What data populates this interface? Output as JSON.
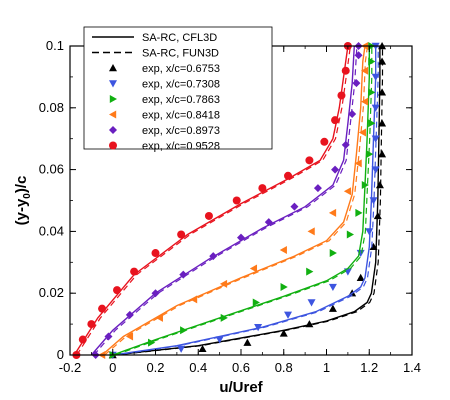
{
  "chart_data": {
    "type": "line",
    "xlabel": "u/Uref",
    "ylabel_parts": [
      "(y-y",
      "0",
      ")/c"
    ],
    "xlim": [
      -0.2,
      1.4
    ],
    "ylim": [
      0,
      0.1
    ],
    "xticks": [
      "-0.2",
      "0",
      "0.2",
      "0.4",
      "0.6",
      "0.8",
      "1",
      "1.2",
      "1.4"
    ],
    "yticks": [
      "0",
      "0.02",
      "0.04",
      "0.06",
      "0.08",
      "0.1"
    ],
    "xtick_values": [
      -0.2,
      0,
      0.2,
      0.4,
      0.6,
      0.8,
      1.0,
      1.2,
      1.4
    ],
    "ytick_values": [
      0,
      0.02,
      0.04,
      0.06,
      0.08,
      0.1
    ],
    "grid": false,
    "legend_position": "top-left",
    "legend": {
      "cfl3d": "SA-RC, CFL3D",
      "fun3d": "SA-RC, FUN3D"
    },
    "series": [
      {
        "name": "exp, x/c=0.6753",
        "color": "#000000",
        "marker": "triangle-up",
        "line": [
          [
            0.0,
            0.0
          ],
          [
            0.4,
            0.003
          ],
          [
            0.8,
            0.008
          ],
          [
            1.0,
            0.011
          ],
          [
            1.13,
            0.014
          ],
          [
            1.19,
            0.017
          ],
          [
            1.21,
            0.02
          ],
          [
            1.23,
            0.03
          ],
          [
            1.24,
            0.05
          ],
          [
            1.245,
            0.07
          ],
          [
            1.25,
            0.09
          ],
          [
            1.25,
            0.1
          ]
        ],
        "points": [
          [
            0.0,
            0.0
          ],
          [
            0.42,
            0.002
          ],
          [
            0.63,
            0.004
          ],
          [
            0.8,
            0.007
          ],
          [
            0.92,
            0.01
          ],
          [
            1.03,
            0.015
          ],
          [
            1.12,
            0.02
          ],
          [
            1.16,
            0.025
          ],
          [
            1.22,
            0.035
          ],
          [
            1.24,
            0.045
          ],
          [
            1.25,
            0.055
          ],
          [
            1.26,
            0.065
          ],
          [
            1.26,
            0.075
          ],
          [
            1.26,
            0.085
          ],
          [
            1.26,
            0.095
          ],
          [
            1.26,
            0.1
          ]
        ]
      },
      {
        "name": "exp, x/c=0.7308",
        "color": "#3d55e0",
        "marker": "triangle-down",
        "line": [
          [
            0.0,
            0.0
          ],
          [
            0.3,
            0.003
          ],
          [
            0.7,
            0.009
          ],
          [
            0.95,
            0.014
          ],
          [
            1.1,
            0.019
          ],
          [
            1.16,
            0.022
          ],
          [
            1.18,
            0.025
          ],
          [
            1.2,
            0.035
          ],
          [
            1.21,
            0.05
          ],
          [
            1.22,
            0.07
          ],
          [
            1.23,
            0.09
          ],
          [
            1.23,
            0.1
          ]
        ],
        "points": [
          [
            0.0,
            0.0
          ],
          [
            0.32,
            0.002
          ],
          [
            0.5,
            0.005
          ],
          [
            0.68,
            0.009
          ],
          [
            0.82,
            0.013
          ],
          [
            0.93,
            0.017
          ],
          [
            1.03,
            0.022
          ],
          [
            1.1,
            0.027
          ],
          [
            1.16,
            0.033
          ],
          [
            1.2,
            0.04
          ],
          [
            1.22,
            0.05
          ],
          [
            1.23,
            0.06
          ],
          [
            1.23,
            0.07
          ],
          [
            1.23,
            0.08
          ],
          [
            1.23,
            0.09
          ],
          [
            1.23,
            0.1
          ]
        ]
      },
      {
        "name": "exp, x/c=0.7863",
        "color": "#11b011",
        "marker": "triangle-right",
        "line": [
          [
            0.0,
            0.0
          ],
          [
            0.2,
            0.005
          ],
          [
            0.5,
            0.012
          ],
          [
            0.8,
            0.019
          ],
          [
            1.0,
            0.024
          ],
          [
            1.1,
            0.028
          ],
          [
            1.15,
            0.032
          ],
          [
            1.17,
            0.04
          ],
          [
            1.18,
            0.055
          ],
          [
            1.19,
            0.07
          ],
          [
            1.2,
            0.09
          ],
          [
            1.2,
            0.1
          ]
        ],
        "points": [
          [
            0.0,
            0.0
          ],
          [
            0.18,
            0.004
          ],
          [
            0.33,
            0.008
          ],
          [
            0.52,
            0.012
          ],
          [
            0.67,
            0.017
          ],
          [
            0.8,
            0.022
          ],
          [
            0.92,
            0.027
          ],
          [
            1.03,
            0.033
          ],
          [
            1.11,
            0.039
          ],
          [
            1.15,
            0.046
          ],
          [
            1.18,
            0.055
          ],
          [
            1.2,
            0.065
          ],
          [
            1.21,
            0.075
          ],
          [
            1.21,
            0.085
          ],
          [
            1.21,
            0.095
          ],
          [
            1.21,
            0.1
          ]
        ]
      },
      {
        "name": "exp, x/c=0.8418",
        "color": "#ff7a1a",
        "marker": "triangle-left",
        "line": [
          [
            -0.05,
            0.0
          ],
          [
            0.05,
            0.006
          ],
          [
            0.3,
            0.016
          ],
          [
            0.6,
            0.025
          ],
          [
            0.85,
            0.032
          ],
          [
            1.0,
            0.037
          ],
          [
            1.08,
            0.043
          ],
          [
            1.12,
            0.052
          ],
          [
            1.14,
            0.065
          ],
          [
            1.16,
            0.08
          ],
          [
            1.17,
            0.095
          ],
          [
            1.18,
            0.1
          ]
        ],
        "points": [
          [
            -0.05,
            0.0
          ],
          [
            0.08,
            0.006
          ],
          [
            0.22,
            0.012
          ],
          [
            0.38,
            0.018
          ],
          [
            0.52,
            0.023
          ],
          [
            0.66,
            0.028
          ],
          [
            0.8,
            0.034
          ],
          [
            0.93,
            0.04
          ],
          [
            1.03,
            0.046
          ],
          [
            1.1,
            0.053
          ],
          [
            1.15,
            0.062
          ],
          [
            1.17,
            0.072
          ],
          [
            1.18,
            0.082
          ],
          [
            1.18,
            0.092
          ],
          [
            1.18,
            0.1
          ]
        ]
      },
      {
        "name": "exp, x/c=0.8973",
        "color": "#6a1fc0",
        "marker": "diamond",
        "line": [
          [
            -0.1,
            0.0
          ],
          [
            0.0,
            0.008
          ],
          [
            0.2,
            0.02
          ],
          [
            0.45,
            0.031
          ],
          [
            0.7,
            0.041
          ],
          [
            0.9,
            0.048
          ],
          [
            1.03,
            0.055
          ],
          [
            1.08,
            0.063
          ],
          [
            1.1,
            0.075
          ],
          [
            1.12,
            0.088
          ],
          [
            1.13,
            0.1
          ]
        ],
        "points": [
          [
            -0.08,
            0.0
          ],
          [
            -0.02,
            0.006
          ],
          [
            0.08,
            0.013
          ],
          [
            0.2,
            0.02
          ],
          [
            0.33,
            0.026
          ],
          [
            0.47,
            0.032
          ],
          [
            0.6,
            0.038
          ],
          [
            0.73,
            0.043
          ],
          [
            0.85,
            0.048
          ],
          [
            0.96,
            0.054
          ],
          [
            1.04,
            0.06
          ],
          [
            1.09,
            0.068
          ],
          [
            1.12,
            0.078
          ],
          [
            1.14,
            0.088
          ],
          [
            1.15,
            0.097
          ],
          [
            1.15,
            0.1
          ]
        ]
      },
      {
        "name": "exp, x/c=0.9528",
        "color": "#e8131e",
        "marker": "circle",
        "line": [
          [
            -0.18,
            0.0
          ],
          [
            -0.07,
            0.012
          ],
          [
            0.1,
            0.026
          ],
          [
            0.35,
            0.039
          ],
          [
            0.6,
            0.049
          ],
          [
            0.82,
            0.057
          ],
          [
            0.97,
            0.063
          ],
          [
            1.03,
            0.07
          ],
          [
            1.06,
            0.08
          ],
          [
            1.08,
            0.09
          ],
          [
            1.1,
            0.1
          ]
        ],
        "points": [
          [
            -0.17,
            0.0
          ],
          [
            -0.14,
            0.005
          ],
          [
            -0.1,
            0.01
          ],
          [
            -0.05,
            0.015
          ],
          [
            0.02,
            0.021
          ],
          [
            0.1,
            0.027
          ],
          [
            0.2,
            0.033
          ],
          [
            0.32,
            0.039
          ],
          [
            0.45,
            0.045
          ],
          [
            0.58,
            0.05
          ],
          [
            0.7,
            0.054
          ],
          [
            0.82,
            0.058
          ],
          [
            0.92,
            0.063
          ],
          [
            0.99,
            0.069
          ],
          [
            1.04,
            0.076
          ],
          [
            1.07,
            0.084
          ],
          [
            1.09,
            0.092
          ],
          [
            1.1,
            0.1
          ]
        ]
      }
    ]
  }
}
